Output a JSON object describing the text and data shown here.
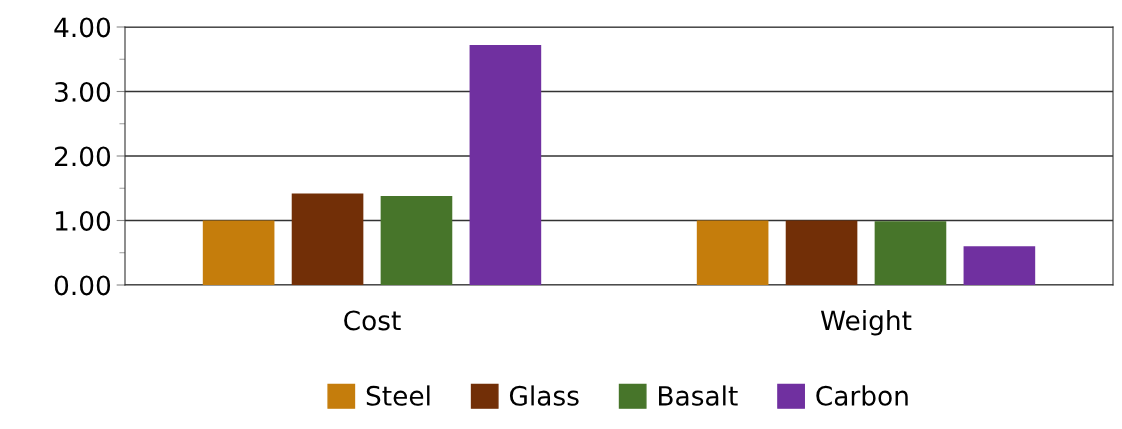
{
  "chart_data": {
    "type": "bar",
    "categories": [
      "Cost",
      "Weight"
    ],
    "series": [
      {
        "name": "Steel",
        "color": "#c57d0c",
        "values": [
          1.0,
          1.0
        ]
      },
      {
        "name": "Glass",
        "color": "#722f07",
        "values": [
          1.42,
          1.0
        ]
      },
      {
        "name": "Basalt",
        "color": "#47752a",
        "values": [
          1.38,
          0.99
        ]
      },
      {
        "name": "Carbon",
        "color": "#7030a0",
        "values": [
          3.72,
          0.6
        ]
      }
    ],
    "ylim": [
      0,
      4
    ],
    "yticks": [
      {
        "value": 0,
        "label": "0.00"
      },
      {
        "value": 0.5,
        "label": null
      },
      {
        "value": 1,
        "label": "1.00"
      },
      {
        "value": 1.5,
        "label": null
      },
      {
        "value": 2,
        "label": "2.00"
      },
      {
        "value": 2.5,
        "label": null
      },
      {
        "value": 3,
        "label": "3.00"
      },
      {
        "value": 3.5,
        "label": null
      },
      {
        "value": 4,
        "label": "4.00"
      }
    ],
    "grid": "y",
    "legend": "bottom"
  }
}
